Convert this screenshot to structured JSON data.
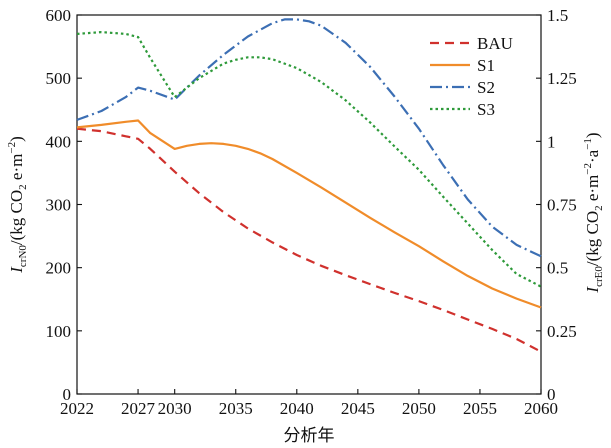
{
  "chart_data": {
    "type": "line",
    "xlabel": "分析年",
    "ylabel_left": {
      "main": "I",
      "sub": "crN0",
      "rest": "/(kg CO",
      "sub2": "2",
      "rest2": " e·m",
      "sup": "−2",
      "rest3": ")"
    },
    "ylabel_right": {
      "main": "I",
      "sub": "crE0",
      "rest": "/(kg CO",
      "sub2": "2",
      "rest2": " e·m",
      "sup": "−2",
      "rest3": "·a",
      "sup2": "−1",
      "rest4": ")"
    },
    "xlim": [
      2022,
      2060
    ],
    "ylim_left": [
      0,
      600
    ],
    "ylim_right": [
      0,
      1.5
    ],
    "x_ticks": [
      2022,
      2027,
      2030,
      2035,
      2040,
      2045,
      2050,
      2055,
      2060
    ],
    "x_tick_labels": [
      "2022",
      "2027",
      "2030",
      "2035",
      "2040",
      "2045",
      "2050",
      "2055",
      "2060"
    ],
    "y_left_ticks": [
      0,
      100,
      200,
      300,
      400,
      500,
      600
    ],
    "y_left_tick_labels": [
      "0",
      "100",
      "200",
      "300",
      "400",
      "500",
      "600"
    ],
    "y_right_ticks": [
      0,
      0.25,
      0.5,
      0.75,
      1,
      1.25,
      1.5
    ],
    "y_right_tick_labels": [
      "0",
      "0.25",
      "0.5",
      "0.75",
      "1",
      "1.25",
      "1.5"
    ],
    "grid": false,
    "legend_position": "top-right",
    "series": [
      {
        "name": "BAU",
        "color": "#d0312d",
        "dash": "dash",
        "x": [
          2022,
          2024,
          2026,
          2027,
          2028,
          2030,
          2032,
          2034,
          2036,
          2038,
          2040,
          2042,
          2044,
          2046,
          2048,
          2050,
          2052,
          2054,
          2056,
          2058,
          2060
        ],
        "y": [
          420,
          416,
          408,
          404,
          388,
          352,
          318,
          288,
          262,
          240,
          220,
          203,
          188,
          174,
          160,
          147,
          133,
          118,
          103,
          87,
          67
        ]
      },
      {
        "name": "S1",
        "color": "#f08c2a",
        "dash": "solid",
        "x": [
          2022,
          2024,
          2026,
          2027,
          2028,
          2030,
          2031,
          2032,
          2033,
          2034,
          2035,
          2036,
          2037,
          2038,
          2040,
          2042,
          2044,
          2046,
          2048,
          2050,
          2052,
          2054,
          2056,
          2058,
          2060
        ],
        "y": [
          422,
          426,
          431,
          433,
          413,
          388,
          393,
          396,
          397,
          396,
          393,
          388,
          381,
          372,
          350,
          327,
          303,
          279,
          256,
          234,
          210,
          187,
          167,
          151,
          137
        ]
      },
      {
        "name": "S2",
        "color": "#3c6fb4",
        "dash": "dashdot",
        "x": [
          2022,
          2024,
          2026,
          2027,
          2028,
          2030,
          2032,
          2034,
          2036,
          2038,
          2039,
          2040,
          2041,
          2042,
          2044,
          2046,
          2048,
          2050,
          2052,
          2054,
          2056,
          2058,
          2060
        ],
        "y": [
          434,
          448,
          470,
          485,
          480,
          466,
          504,
          537,
          566,
          587,
          593,
          593,
          590,
          583,
          556,
          518,
          471,
          420,
          362,
          308,
          265,
          236,
          218
        ]
      },
      {
        "name": "S3",
        "color": "#2e9a3a",
        "dash": "dot",
        "x": [
          2022,
          2024,
          2026,
          2027,
          2028,
          2030,
          2032,
          2034,
          2035,
          2036,
          2037,
          2038,
          2040,
          2042,
          2044,
          2046,
          2048,
          2050,
          2052,
          2054,
          2056,
          2058,
          2060
        ],
        "y": [
          570,
          573,
          570,
          565,
          532,
          470,
          500,
          523,
          529,
          533,
          533,
          530,
          516,
          494,
          465,
          430,
          392,
          355,
          312,
          270,
          228,
          190,
          170
        ]
      }
    ]
  }
}
